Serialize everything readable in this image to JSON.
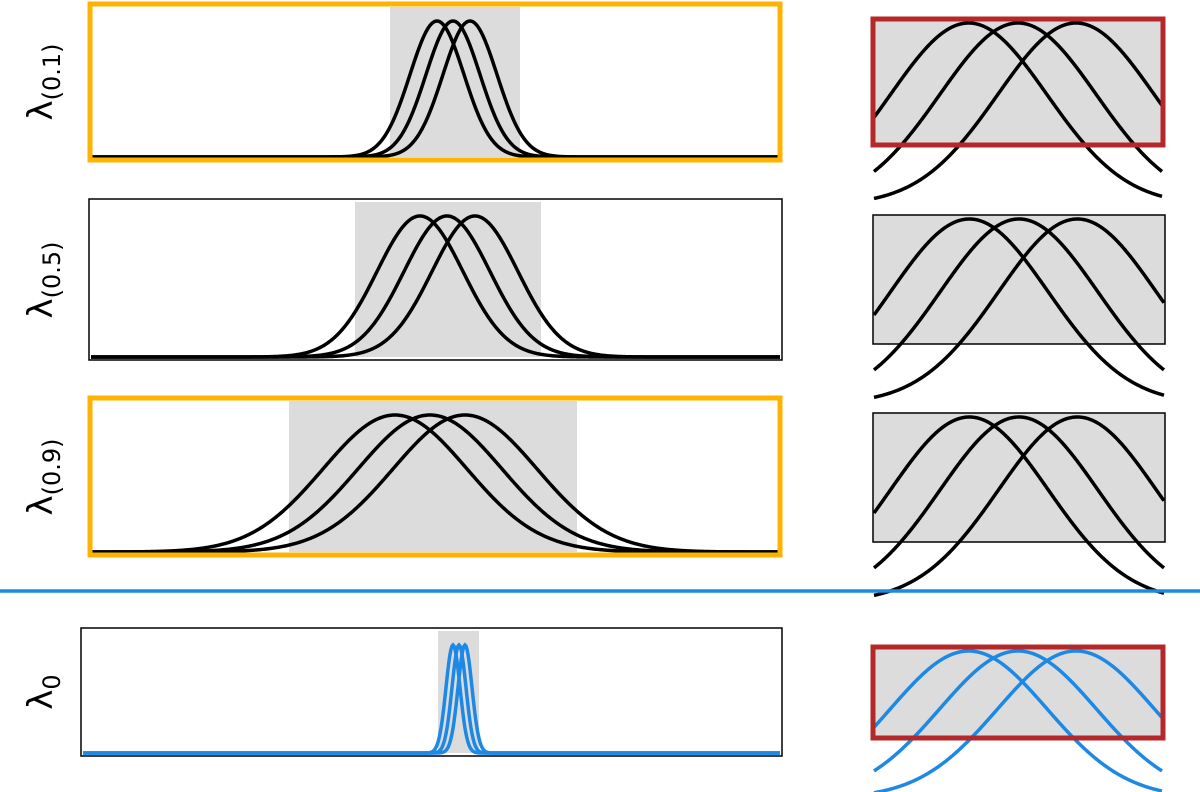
{
  "rows": [
    {
      "label": {
        "symbol": "λ",
        "subscript": "(0.1)"
      }
    },
    {
      "label": {
        "symbol": "λ",
        "subscript": "(0.5)"
      }
    },
    {
      "label": {
        "symbol": "λ",
        "subscript": "(0.9)"
      }
    },
    {
      "label": {
        "symbol": "λ",
        "subscript": "0"
      }
    }
  ]
}
